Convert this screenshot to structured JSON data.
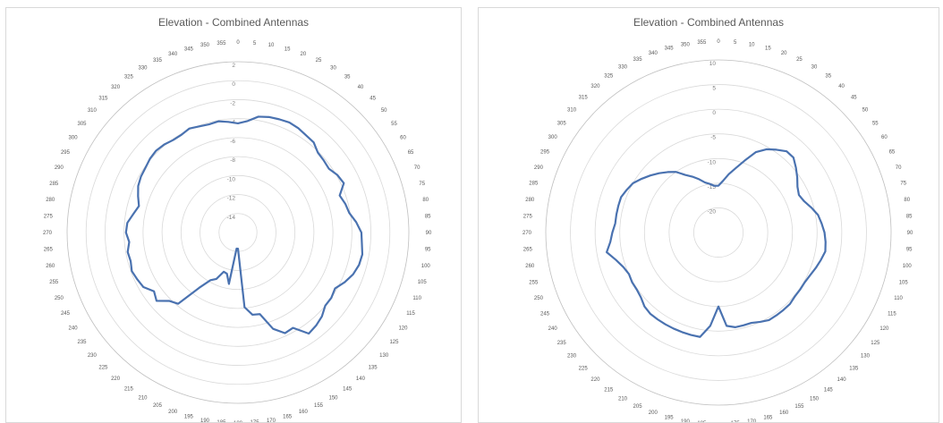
{
  "chart_data": [
    {
      "type": "radar",
      "title": "Elevation - Combined Antennas",
      "angle_labels": [
        "0",
        "5",
        "10",
        "15",
        "20",
        "25",
        "30",
        "35",
        "40",
        "45",
        "50",
        "55",
        "60",
        "65",
        "70",
        "75",
        "80",
        "85",
        "90",
        "95",
        "100",
        "105",
        "110",
        "115",
        "120",
        "125",
        "130",
        "135",
        "140",
        "145",
        "150",
        "155",
        "160",
        "165",
        "170",
        "175",
        "180",
        "185",
        "190",
        "195",
        "200",
        "205",
        "210",
        "215",
        "220",
        "225",
        "230",
        "235",
        "240",
        "245",
        "250",
        "255",
        "260",
        "265",
        "270",
        "275",
        "280",
        "285",
        "290",
        "295",
        "300",
        "305",
        "310",
        "315",
        "320",
        "325",
        "330",
        "335",
        "340",
        "345",
        "350",
        "355"
      ],
      "ring_labels": [
        "2",
        "0",
        "-2",
        "-4",
        "-6",
        "-8",
        "-10",
        "-12",
        "-14"
      ],
      "rlim": [
        -16,
        2
      ],
      "series": [
        {
          "values": [
            -4.5,
            -4.2,
            -3.6,
            -3.4,
            -3.3,
            -3.2,
            -3.3,
            -3.5,
            -3.6,
            -4.1,
            -4.2,
            -4.3,
            -3.9,
            -3.7,
            -4.6,
            -4.3,
            -4.1,
            -3.5,
            -3.0,
            -2.9,
            -2.7,
            -2.8,
            -3.1,
            -3.6,
            -4.2,
            -4.0,
            -4.0,
            -3.5,
            -3.2,
            -3.0,
            -4.4,
            -4.3,
            -5.2,
            -7.1,
            -7.2,
            -8.1,
            -14.3,
            -14.3,
            -10.5,
            -11.5,
            -11.6,
            -10.6,
            -10.2,
            -8.9,
            -6.2,
            -5.8,
            -4.8,
            -5.2,
            -4.5,
            -4.3,
            -4.1,
            -4.3,
            -4.2,
            -4.5,
            -4.2,
            -4.3,
            -4.8,
            -5.2,
            -4.8,
            -4.4,
            -4.2,
            -4.1,
            -3.9,
            -3.8,
            -3.9,
            -4.1,
            -4.1,
            -3.9,
            -4.1,
            -4.2,
            -4.1,
            -4.3
          ],
          "color": "#4a72b0"
        }
      ],
      "grid": true
    },
    {
      "type": "radar",
      "title": "Elevation - Combined Antennas",
      "angle_labels": [
        "0",
        "5",
        "10",
        "15",
        "20",
        "25",
        "30",
        "35",
        "40",
        "45",
        "50",
        "55",
        "60",
        "65",
        "70",
        "75",
        "80",
        "85",
        "90",
        "95",
        "100",
        "105",
        "110",
        "115",
        "120",
        "125",
        "130",
        "135",
        "140",
        "145",
        "150",
        "155",
        "160",
        "165",
        "170",
        "175",
        "180",
        "185",
        "190",
        "195",
        "200",
        "205",
        "210",
        "215",
        "220",
        "225",
        "230",
        "235",
        "240",
        "245",
        "250",
        "255",
        "260",
        "265",
        "270",
        "275",
        "280",
        "285",
        "290",
        "295",
        "300",
        "305",
        "310",
        "315",
        "320",
        "325",
        "330",
        "335",
        "340",
        "345",
        "350",
        "355"
      ],
      "ring_labels": [
        "10",
        "5",
        "0",
        "-5",
        "-10",
        "-15",
        "-20"
      ],
      "rlim": [
        -25,
        10
      ],
      "series": [
        {
          "values": [
            -15.5,
            -14.5,
            -13.0,
            -11.5,
            -9.5,
            -7.0,
            -5.5,
            -4.5,
            -3.5,
            -3.5,
            -4.5,
            -5.5,
            -6.5,
            -7.0,
            -6.5,
            -5.5,
            -4.5,
            -4.0,
            -3.5,
            -3.2,
            -3.0,
            -3.5,
            -4.0,
            -4.5,
            -4.8,
            -4.8,
            -4.8,
            -4.5,
            -4.5,
            -4.5,
            -4.5,
            -5.0,
            -5.5,
            -5.5,
            -5.5,
            -6.0,
            -10.0,
            -6.0,
            -3.5,
            -3.5,
            -3.5,
            -3.5,
            -3.5,
            -3.5,
            -3.5,
            -3.8,
            -4.5,
            -4.8,
            -4.8,
            -5.0,
            -4.5,
            -3.5,
            -2.0,
            -3.0,
            -3.5,
            -4.0,
            -4.0,
            -4.0,
            -4.0,
            -4.5,
            -5.0,
            -6.0,
            -7.0,
            -8.0,
            -9.0,
            -10.0,
            -11.5,
            -12.5,
            -13.5,
            -14.5,
            -15.0,
            -15.5
          ],
          "color": "#4a72b0"
        }
      ],
      "grid": true
    }
  ]
}
